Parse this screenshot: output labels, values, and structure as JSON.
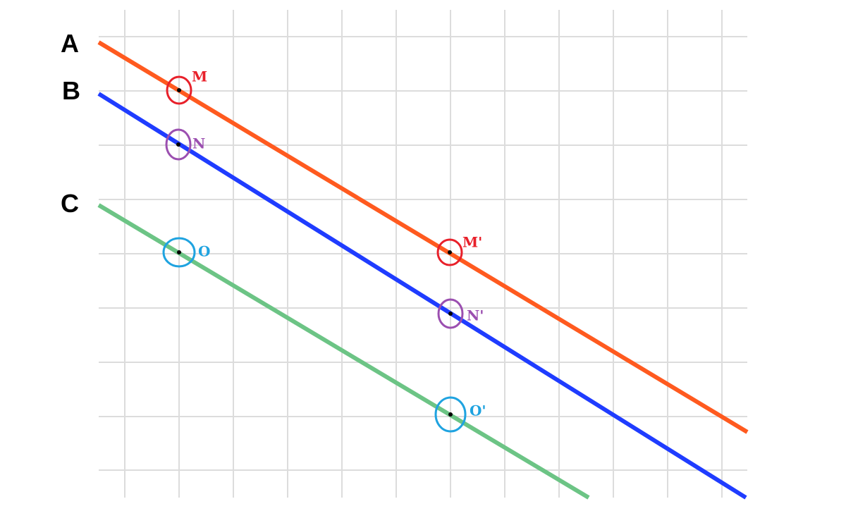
{
  "line_labels": {
    "a": "A",
    "b": "B",
    "c": "C"
  },
  "lines": [
    {
      "id": "A",
      "color": "#ff5a1f"
    },
    {
      "id": "B",
      "color": "#1f3cff"
    },
    {
      "id": "C",
      "color": "#6cc485"
    }
  ],
  "points": [
    {
      "id": "M",
      "label": "M",
      "color": "#e8202a"
    },
    {
      "id": "N",
      "label": "N",
      "color": "#9b4fb0"
    },
    {
      "id": "O",
      "label": "O",
      "color": "#1fa3e0"
    },
    {
      "id": "M'",
      "label": "M'",
      "color": "#e8202a"
    },
    {
      "id": "N'",
      "label": "N'",
      "color": "#9b4fb0"
    },
    {
      "id": "O'",
      "label": "O'",
      "color": "#1fa3e0"
    }
  ],
  "colors": {
    "grid": "#dcdcdc",
    "point_dot": "#000000"
  }
}
